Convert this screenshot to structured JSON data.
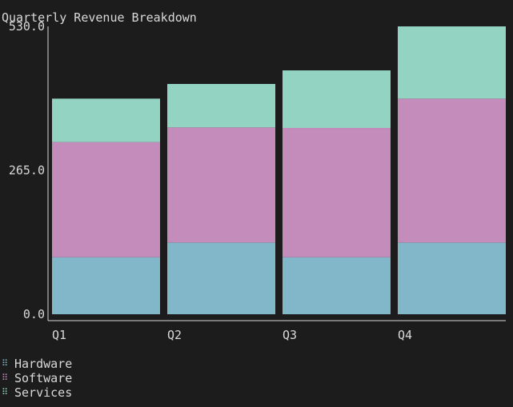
{
  "chart_data": {
    "type": "bar",
    "stacked": true,
    "title": "Quarterly Revenue Breakdown",
    "categories": [
      "Q1",
      "Q2",
      "Q3",
      "Q4"
    ],
    "y_ticks": [
      "0.0",
      "265.0",
      "530.0"
    ],
    "ylim": [
      0,
      530
    ],
    "grid": false,
    "legend_position": "bottom-left",
    "series": [
      {
        "name": "Hardware",
        "color": "#81b7c8",
        "values": [
          105,
          132,
          105,
          132
        ]
      },
      {
        "name": "Software",
        "color": "#c38cba",
        "values": [
          212,
          212,
          238,
          265
        ]
      },
      {
        "name": "Services",
        "color": "#93d3c1",
        "values": [
          80,
          80,
          106,
          133
        ]
      }
    ]
  },
  "legend_glyph": "⠿"
}
